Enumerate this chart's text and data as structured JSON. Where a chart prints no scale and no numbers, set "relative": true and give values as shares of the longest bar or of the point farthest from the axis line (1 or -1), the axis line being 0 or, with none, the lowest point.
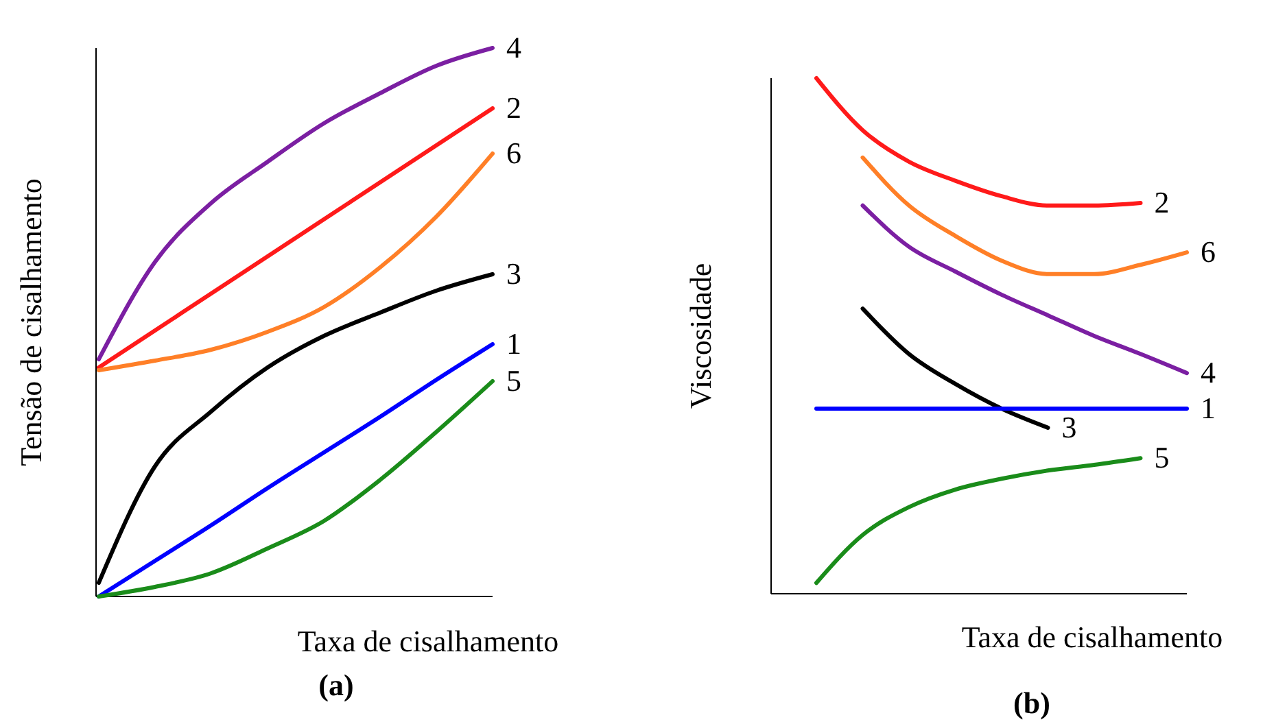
{
  "chart_data": [
    {
      "type": "line",
      "title": "(a)",
      "xlabel": "Taxa de cisalhamento",
      "ylabel": "Tensão de cisalhamento",
      "relative": true,
      "categories": [
        null,
        null,
        null,
        null,
        null,
        null,
        null,
        null
      ],
      "series": [
        {
          "name": "4",
          "color": "#7b1fa2",
          "values": [
            0.4325,
            0.61,
            0.7175,
            0.7925,
            0.8625,
            0.9175,
            0.9675,
            1.0
          ]
        },
        {
          "name": "2",
          "color": "#ff1a1a",
          "values": [
            0.4175,
            0.485,
            0.5525,
            0.62,
            0.6875,
            0.755,
            0.8225,
            0.89
          ]
        },
        {
          "name": "6",
          "color": "#ff7f27",
          "values": [
            0.4125,
            0.43,
            0.45,
            0.4825,
            0.5275,
            0.6,
            0.6925,
            0.8075
          ]
        },
        {
          "name": "3",
          "color": "#000000",
          "values": [
            0.025,
            0.2375,
            0.3375,
            0.4175,
            0.475,
            0.5175,
            0.5575,
            0.5875
          ]
        },
        {
          "name": "1",
          "color": "#0000ff",
          "values": [
            0,
            0.065,
            0.13,
            0.1975,
            0.2625,
            0.3275,
            0.395,
            0.46
          ]
        },
        {
          "name": "5",
          "color": "#1a8c1a",
          "values": [
            0,
            0.0175,
            0.0425,
            0.0875,
            0.1375,
            0.2125,
            0.3,
            0.3925
          ]
        }
      ]
    },
    {
      "type": "line",
      "title": "(b)",
      "xlabel": "Taxa de cisalhamento",
      "ylabel": "Viscosidade",
      "relative": true,
      "categories": [
        null,
        null,
        null,
        null,
        null,
        null,
        null,
        null,
        null
      ],
      "series": [
        {
          "name": "2",
          "color": "#ff1a1a",
          "values": [
            1.0,
            0.899,
            0.838,
            0.801,
            0.771,
            0.753,
            0.753,
            0.758,
            null
          ]
        },
        {
          "name": "6",
          "color": "#ff7f27",
          "values": [
            null,
            0.846,
            0.753,
            0.694,
            0.646,
            0.62,
            0.62,
            0.638,
            0.662
          ]
        },
        {
          "name": "4",
          "color": "#7b1fa2",
          "values": [
            null,
            0.753,
            0.673,
            0.625,
            0.58,
            0.54,
            0.5,
            0.465,
            0.428
          ]
        },
        {
          "name": "3",
          "color": "#000000",
          "values": [
            null,
            0.553,
            0.465,
            0.407,
            0.359,
            0.322,
            null,
            null,
            null
          ]
        },
        {
          "name": "1",
          "color": "#0000ff",
          "values": [
            0.359,
            0.359,
            0.359,
            0.359,
            0.359,
            0.359,
            0.359,
            0.359,
            0.359
          ]
        },
        {
          "name": "5",
          "color": "#1a8c1a",
          "values": [
            0.021,
            0.114,
            0.168,
            0.202,
            0.223,
            0.239,
            0.25,
            0.263,
            null
          ]
        }
      ]
    }
  ]
}
